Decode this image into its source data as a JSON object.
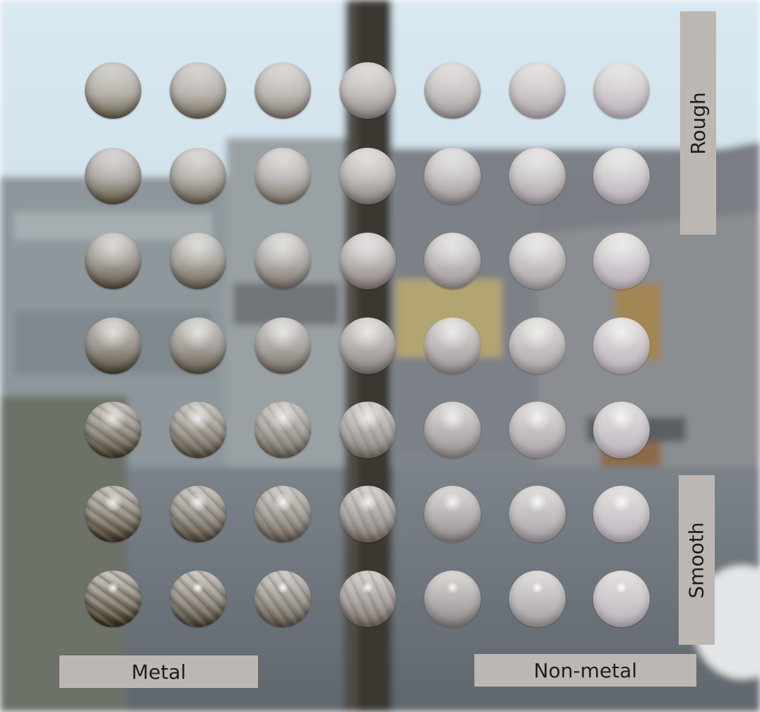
{
  "labels": {
    "rough": "Rough",
    "smooth": "Smooth",
    "metal": "Metal",
    "non_metal": "Non-metal"
  },
  "grid": {
    "rows": 7,
    "columns": 7
  },
  "colors": {
    "sky": "#cfe0ea",
    "building": "#7d858c",
    "pillar": "#3b3733",
    "ground": "#6f757b",
    "label_bg": "#bdb7b3",
    "label_text": "#1e1e1e",
    "sphere_base": "#d9d3cf",
    "metal_tint": "#6b5a46"
  }
}
